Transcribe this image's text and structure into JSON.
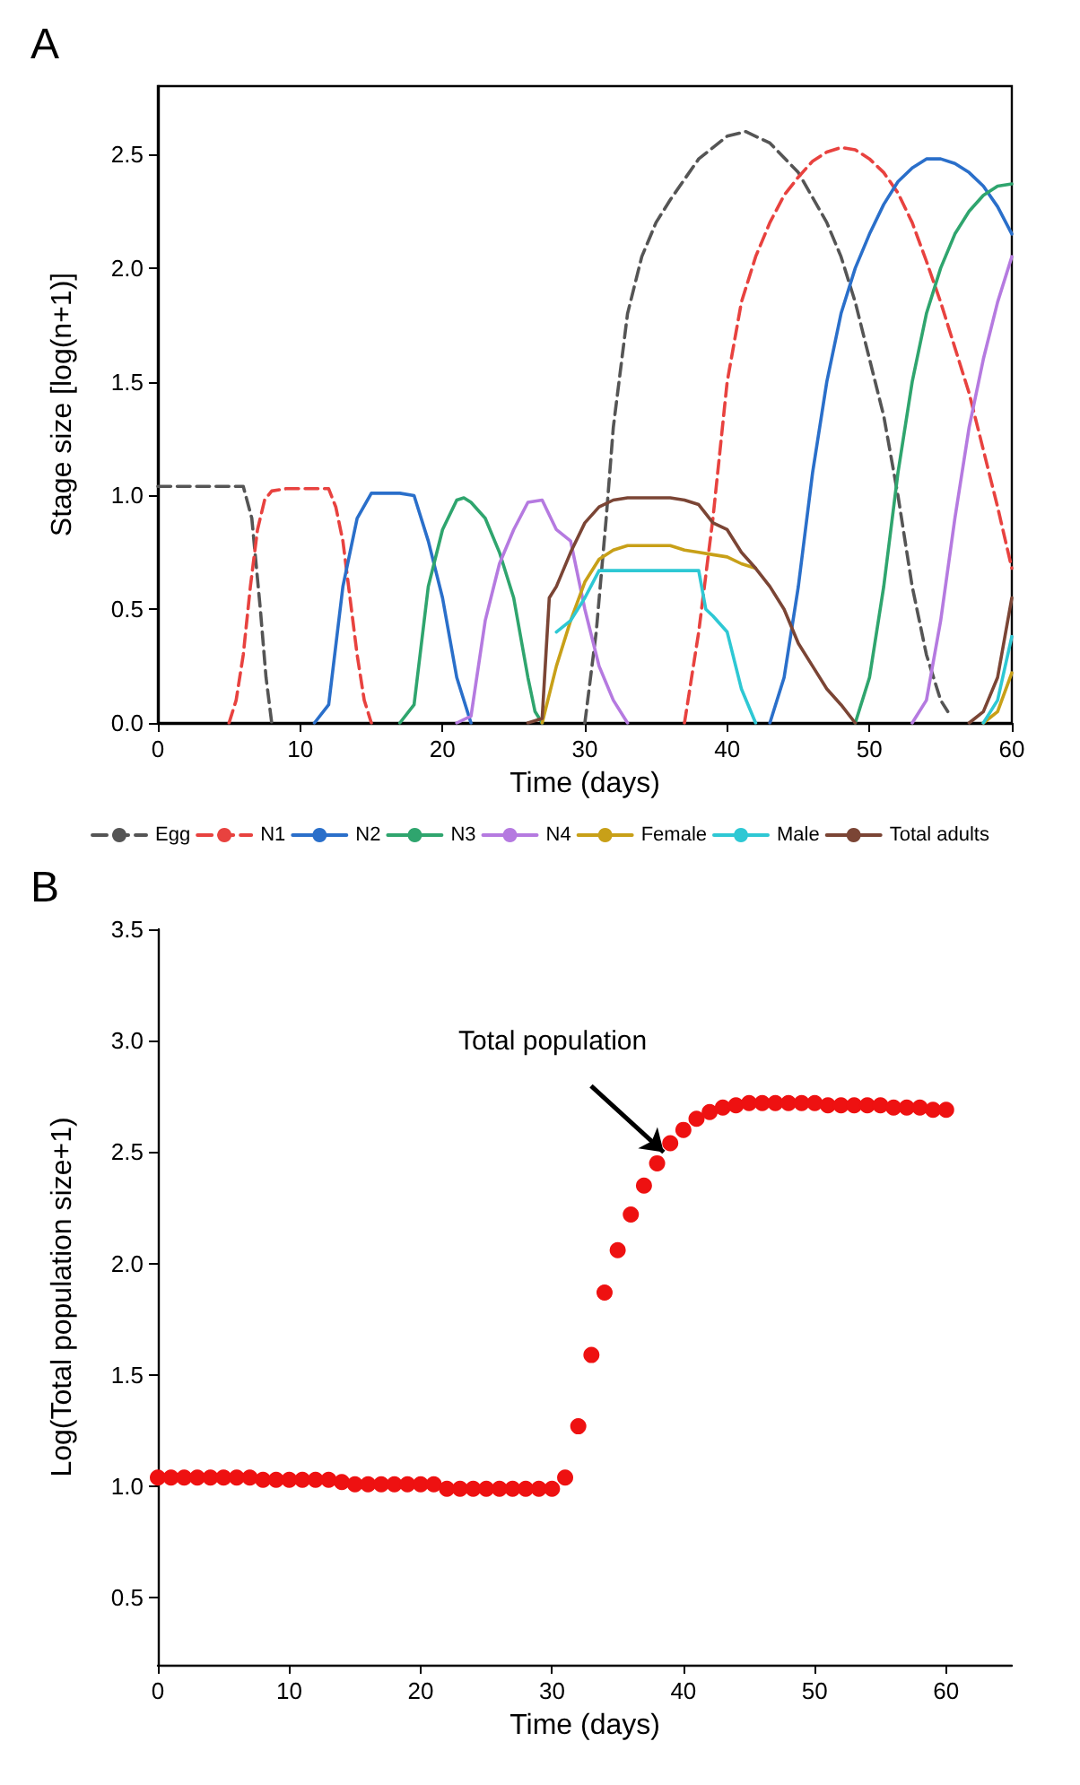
{
  "chart_data": [
    {
      "type": "line",
      "title": "A",
      "xlabel": "Time (days)",
      "ylabel": "Stage size [log(n+1)]",
      "xlim": [
        0,
        60
      ],
      "xticks": [
        0,
        10,
        20,
        30,
        40,
        50,
        60
      ],
      "ylim": [
        0,
        2.8
      ],
      "yticks": [
        {
          "value": 0,
          "label": "0.0"
        },
        0.5,
        {
          "value": 1,
          "label": "1.0"
        },
        1.5,
        {
          "value": 2,
          "label": "2.0"
        },
        2.5
      ],
      "grid": false,
      "legend": "bottom",
      "marker": "none",
      "series": [
        {
          "name": "Egg",
          "color": "#555555",
          "line_style": "dashed",
          "x": [
            0,
            6,
            6.6,
            7.2,
            7.6,
            8,
            19,
            30,
            30.8,
            31.5,
            32,
            33,
            34,
            35,
            36,
            38,
            40,
            41.3,
            43,
            45,
            47,
            48,
            49,
            50,
            51,
            52,
            53,
            54,
            55,
            55.5
          ],
          "values": [
            1.04,
            1.04,
            0.9,
            0.5,
            0.2,
            0,
            null,
            0,
            0.4,
            0.9,
            1.3,
            1.8,
            2.05,
            2.2,
            2.3,
            2.48,
            2.58,
            2.6,
            2.55,
            2.42,
            2.2,
            2.05,
            1.85,
            1.6,
            1.35,
            1.0,
            0.6,
            0.3,
            0.1,
            0.05
          ]
        },
        {
          "name": "N1",
          "color": "#e8423f",
          "line_style": "dashed",
          "x": [
            5,
            5.5,
            6,
            6.5,
            7,
            7.5,
            8,
            9,
            12,
            12.5,
            13,
            13.5,
            14,
            14.5,
            15,
            26,
            37,
            38,
            39,
            40,
            41,
            42,
            43,
            44,
            45,
            46,
            47,
            48,
            49,
            50,
            51,
            52,
            53,
            54,
            55,
            56,
            57,
            58,
            59,
            60
          ],
          "values": [
            0,
            0.1,
            0.3,
            0.6,
            0.85,
            0.98,
            1.02,
            1.03,
            1.03,
            0.95,
            0.8,
            0.55,
            0.3,
            0.1,
            0,
            null,
            0,
            0.4,
            0.9,
            1.5,
            1.85,
            2.05,
            2.2,
            2.32,
            2.4,
            2.47,
            2.51,
            2.53,
            2.52,
            2.48,
            2.42,
            2.33,
            2.2,
            2.03,
            1.85,
            1.65,
            1.45,
            1.2,
            0.95,
            0.68
          ]
        },
        {
          "name": "N2",
          "color": "#2a6fca",
          "line_style": "solid",
          "x": [
            11,
            12,
            13,
            14,
            15,
            17,
            18,
            19,
            20,
            21,
            22,
            32,
            43,
            44,
            45,
            46,
            47,
            48,
            49,
            50,
            51,
            52,
            53,
            54,
            55,
            56,
            57,
            58,
            59,
            60
          ],
          "values": [
            0,
            0.08,
            0.6,
            0.9,
            1.01,
            1.01,
            1.0,
            0.8,
            0.55,
            0.2,
            0,
            null,
            0,
            0.2,
            0.6,
            1.1,
            1.5,
            1.8,
            2.0,
            2.15,
            2.28,
            2.38,
            2.44,
            2.48,
            2.48,
            2.46,
            2.42,
            2.36,
            2.27,
            2.15
          ]
        },
        {
          "name": "N3",
          "color": "#2fa56e",
          "line_style": "solid",
          "x": [
            17,
            18,
            19,
            20,
            21,
            21.5,
            22,
            23,
            24,
            25,
            26,
            26.5,
            27,
            38,
            49,
            50,
            51,
            52,
            53,
            54,
            55,
            56,
            57,
            58,
            59,
            60
          ],
          "values": [
            0,
            0.08,
            0.6,
            0.85,
            0.98,
            0.99,
            0.97,
            0.9,
            0.75,
            0.55,
            0.2,
            0.05,
            0,
            null,
            0,
            0.2,
            0.6,
            1.1,
            1.5,
            1.8,
            2.0,
            2.15,
            2.25,
            2.32,
            2.36,
            2.37
          ]
        },
        {
          "name": "N4",
          "color": "#b57ae0",
          "line_style": "solid",
          "x": [
            21,
            22,
            23,
            24,
            25,
            26,
            27,
            28,
            29,
            30,
            31,
            32,
            33,
            43,
            53,
            54,
            55,
            56,
            57,
            58,
            59,
            60
          ],
          "values": [
            0,
            0.03,
            0.45,
            0.7,
            0.85,
            0.97,
            0.98,
            0.85,
            0.8,
            0.5,
            0.25,
            0.1,
            0,
            null,
            0,
            0.1,
            0.45,
            0.9,
            1.3,
            1.6,
            1.85,
            2.05
          ]
        },
        {
          "name": "Female",
          "color": "#c8a018",
          "line_style": "solid",
          "x": [
            27,
            28,
            29,
            30,
            31,
            32,
            33,
            36,
            37,
            38,
            39,
            40,
            41,
            42,
            50,
            58,
            59,
            60
          ],
          "values": [
            0,
            0.25,
            0.45,
            0.62,
            0.72,
            0.76,
            0.78,
            0.78,
            0.76,
            0.75,
            0.74,
            0.73,
            0.7,
            0.68,
            null,
            0,
            0.05,
            0.22
          ]
        },
        {
          "name": "Male",
          "color": "#2ec8d4",
          "line_style": "solid",
          "x": [
            28,
            29,
            30,
            31,
            32,
            38,
            38.5,
            39,
            40,
            41,
            42,
            50,
            58,
            59,
            60
          ],
          "values": [
            0.4,
            0.45,
            0.55,
            0.67,
            0.67,
            0.67,
            0.5,
            0.47,
            0.4,
            0.15,
            0,
            null,
            0,
            0.1,
            0.38
          ]
        },
        {
          "name": "Total adults",
          "color": "#7b4535",
          "line_style": "solid",
          "x": [
            26,
            27,
            27.5,
            28,
            29,
            30,
            31,
            32,
            33,
            36,
            37,
            38,
            39,
            40,
            41,
            42,
            43,
            44,
            45,
            46,
            47,
            48,
            49,
            53,
            57,
            58,
            59,
            60
          ],
          "values": [
            0,
            0.02,
            0.55,
            0.6,
            0.75,
            0.88,
            0.95,
            0.98,
            0.99,
            0.99,
            0.98,
            0.96,
            0.88,
            0.85,
            0.75,
            0.68,
            0.6,
            0.5,
            0.35,
            0.25,
            0.15,
            0.08,
            0,
            null,
            0,
            0.05,
            0.2,
            0.55
          ]
        }
      ]
    },
    {
      "type": "scatter",
      "title": "B",
      "xlabel": "Time (days)",
      "ylabel": "Log(Total population size+1)",
      "xlim": [
        0,
        65
      ],
      "xticks": [
        0,
        10,
        20,
        30,
        40,
        50,
        60
      ],
      "ylim": [
        0.2,
        3.5
      ],
      "yticks": [
        0.5,
        {
          "value": 1,
          "label": "1.0"
        },
        1.5,
        {
          "value": 2,
          "label": "2.0"
        },
        2.5,
        {
          "value": 3,
          "label": "3.0"
        },
        3.5
      ],
      "grid": false,
      "marker": "circle",
      "annotations": [
        {
          "text": "Total population",
          "x": 38.5,
          "y": 2.5
        }
      ],
      "x": [
        0,
        1,
        2,
        3,
        4,
        5,
        6,
        7,
        8,
        9,
        10,
        11,
        12,
        13,
        14,
        15,
        16,
        17,
        18,
        19,
        20,
        21,
        22,
        23,
        24,
        25,
        26,
        27,
        28,
        29,
        30,
        31,
        32,
        33,
        34,
        35,
        36,
        37,
        38,
        39,
        40,
        41,
        42,
        43,
        44,
        45,
        46,
        47,
        48,
        49,
        50,
        51,
        52,
        53,
        54,
        55,
        56,
        57,
        58,
        59,
        60
      ],
      "series": [
        {
          "color": "#ee1111",
          "values": [
            1.04,
            1.04,
            1.04,
            1.04,
            1.04,
            1.04,
            1.04,
            1.04,
            1.03,
            1.03,
            1.03,
            1.03,
            1.03,
            1.03,
            1.02,
            1.01,
            1.01,
            1.01,
            1.01,
            1.01,
            1.01,
            1.01,
            0.99,
            0.99,
            0.99,
            0.99,
            0.99,
            0.99,
            0.99,
            0.99,
            0.99,
            1.04,
            1.27,
            1.59,
            1.87,
            2.06,
            2.22,
            2.35,
            2.45,
            2.54,
            2.6,
            2.65,
            2.68,
            2.7,
            2.71,
            2.72,
            2.72,
            2.72,
            2.72,
            2.72,
            2.72,
            2.71,
            2.71,
            2.71,
            2.71,
            2.71,
            2.7,
            2.7,
            2.7,
            2.69,
            2.69
          ]
        }
      ]
    }
  ]
}
